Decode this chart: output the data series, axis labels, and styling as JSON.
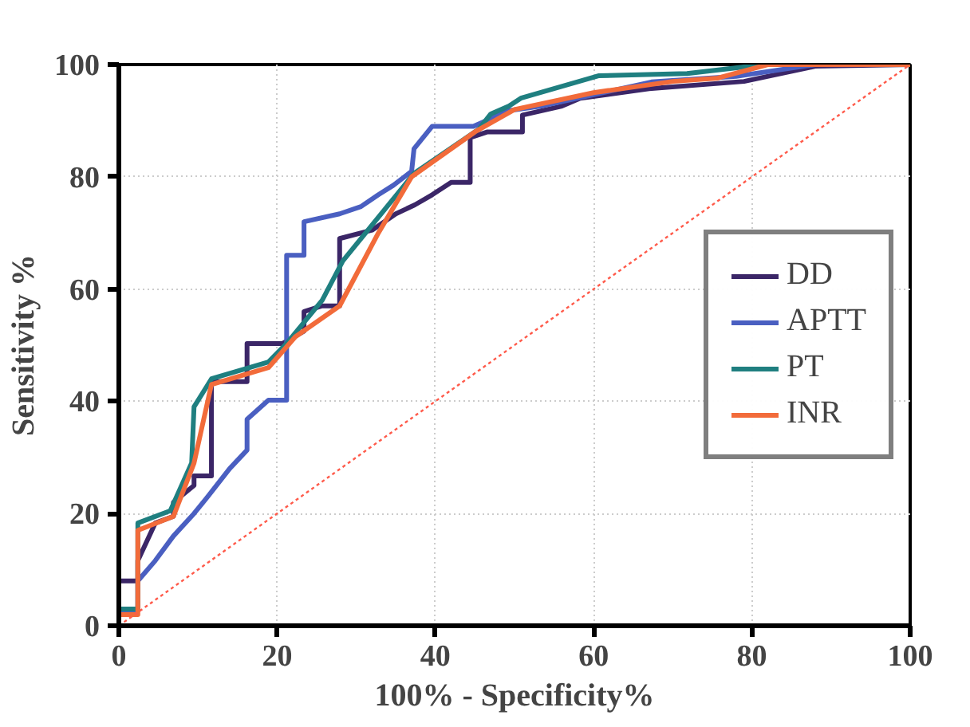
{
  "chart_data": {
    "type": "line",
    "xlabel": "100% - Specificity%",
    "ylabel": "Sensitivity %",
    "xlim": [
      0,
      100
    ],
    "ylim": [
      0,
      100
    ],
    "xticks": [
      0,
      20,
      40,
      60,
      80,
      100
    ],
    "yticks": [
      0,
      20,
      40,
      60,
      80,
      100
    ],
    "grid": true,
    "legend": "right",
    "marker": "none",
    "line_style": "solid",
    "series": [
      {
        "name": "DD",
        "color": "#3b2667",
        "type": "step",
        "x": [
          0,
          2.4,
          2.4,
          4.6,
          6.9,
          6.9,
          9.5,
          9.5,
          11.7,
          11.7,
          16.2,
          16.2,
          20.7,
          23.4,
          23.4,
          25.7,
          27.9,
          27.9,
          32,
          35,
          37.4,
          39.6,
          42,
          44.4,
          44.4,
          46.6,
          51,
          51,
          56,
          58.3,
          67,
          79,
          88,
          100
        ],
        "values": [
          8,
          8,
          11.6,
          18.3,
          19.5,
          22,
          25,
          26.7,
          26.7,
          43.5,
          43.5,
          50.3,
          50.3,
          52.5,
          56,
          57,
          57,
          69,
          70.5,
          73.4,
          75,
          76.8,
          79,
          79,
          87,
          88,
          88,
          91,
          92.6,
          94,
          95.7,
          97,
          99.7,
          100
        ]
      },
      {
        "name": "APTT",
        "color": "#4a5fc1",
        "type": "step",
        "x": [
          0,
          2.4,
          2.4,
          4.6,
          6.9,
          9.5,
          11.4,
          14,
          16.2,
          16.2,
          18.9,
          21.2,
          21.2,
          23.4,
          23.4,
          27.9,
          30.6,
          32.8,
          34.7,
          37,
          37.3,
          39.6,
          44.8,
          49.3,
          53.4,
          62.8,
          67.3,
          78,
          88,
          100
        ],
        "values": [
          2.7,
          2.7,
          8,
          11.6,
          16,
          20,
          23.3,
          28,
          31.3,
          36.8,
          40.2,
          40.2,
          66,
          66,
          72,
          73.4,
          74.7,
          76.8,
          78.5,
          81,
          85,
          89,
          89,
          91.8,
          92.6,
          95.5,
          96.9,
          97.9,
          100,
          100
        ]
      },
      {
        "name": "PT",
        "color": "#1f7f80",
        "x": [
          0,
          2.4,
          2.4,
          6.5,
          9.2,
          9.5,
          11.7,
          18.9,
          21.2,
          25.7,
          28.3,
          37.3,
          45.5,
          47,
          49.3,
          50.8,
          60.6,
          71.8,
          81.6,
          100
        ],
        "values": [
          3,
          3,
          18.3,
          20.5,
          29,
          39,
          44,
          47,
          50.3,
          58,
          65,
          80.6,
          88.5,
          91.2,
          92.6,
          94,
          98,
          98.4,
          100,
          100
        ]
      },
      {
        "name": "INR",
        "color": "#f26b3a",
        "x": [
          0,
          2.4,
          2.4,
          6.9,
          9.5,
          11.7,
          18.9,
          22.3,
          27.9,
          32.8,
          37,
          45,
          50,
          60,
          70,
          75.7,
          82,
          100
        ],
        "values": [
          2,
          2,
          17,
          19.5,
          29,
          43,
          46,
          51.5,
          57,
          70,
          80,
          88,
          92,
          95,
          97,
          97.6,
          100,
          100
        ]
      },
      {
        "color": "#ff5a4a",
        "line_style": "dotted",
        "x": [
          0,
          100
        ],
        "values": [
          0,
          100
        ]
      }
    ]
  }
}
